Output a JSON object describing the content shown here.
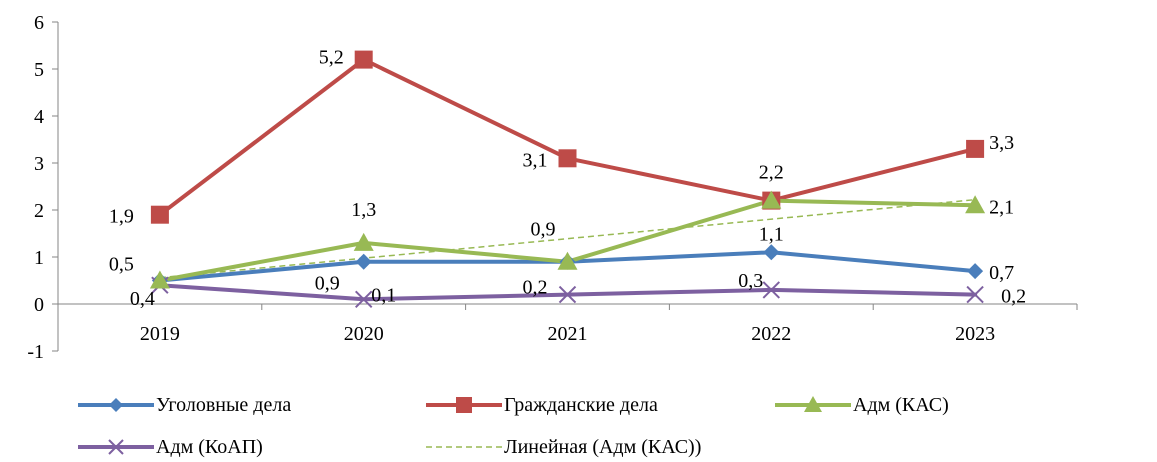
{
  "chart_data": {
    "type": "line",
    "categories": [
      "2019",
      "2020",
      "2021",
      "2022",
      "2023"
    ],
    "ylim": [
      -1,
      6
    ],
    "yticks": [
      "-1",
      "0",
      "1",
      "2",
      "3",
      "4",
      "5",
      "6"
    ],
    "grid": false,
    "legend_position": "bottom",
    "series": [
      {
        "name": "Уголовные дела",
        "values": [
          0.5,
          0.9,
          0.9,
          1.1,
          0.7
        ],
        "labels": [
          "0,5",
          "0,9",
          "0,9",
          "1,1",
          "0,7"
        ],
        "color": "#4a7ebb",
        "marker": "diamond"
      },
      {
        "name": "Гражданские дела",
        "values": [
          1.9,
          5.2,
          3.1,
          2.2,
          3.3
        ],
        "labels": [
          "1,9",
          "5,2",
          "3,1",
          "2,2",
          "3,3"
        ],
        "color": "#be4b48",
        "marker": "square"
      },
      {
        "name": "Адм (КАС)",
        "values": [
          0.5,
          1.3,
          0.9,
          2.2,
          2.1
        ],
        "labels": [
          "",
          "1,3",
          "",
          "",
          "2,1"
        ],
        "color": "#98b954",
        "marker": "triangle"
      },
      {
        "name": "Адм (КоАП)",
        "values": [
          0.4,
          0.1,
          0.2,
          0.3,
          0.2
        ],
        "labels": [
          "0,4",
          "0,1",
          "0,2",
          "0,3",
          "0,2"
        ],
        "color": "#7d60a0",
        "marker": "x"
      }
    ],
    "trendline": {
      "name": "Линейная (Адм (КАС))",
      "of_series": "Адм (КАС)",
      "start": 0.56,
      "end": 2.22,
      "color": "#98b954",
      "style": "dashed"
    }
  }
}
